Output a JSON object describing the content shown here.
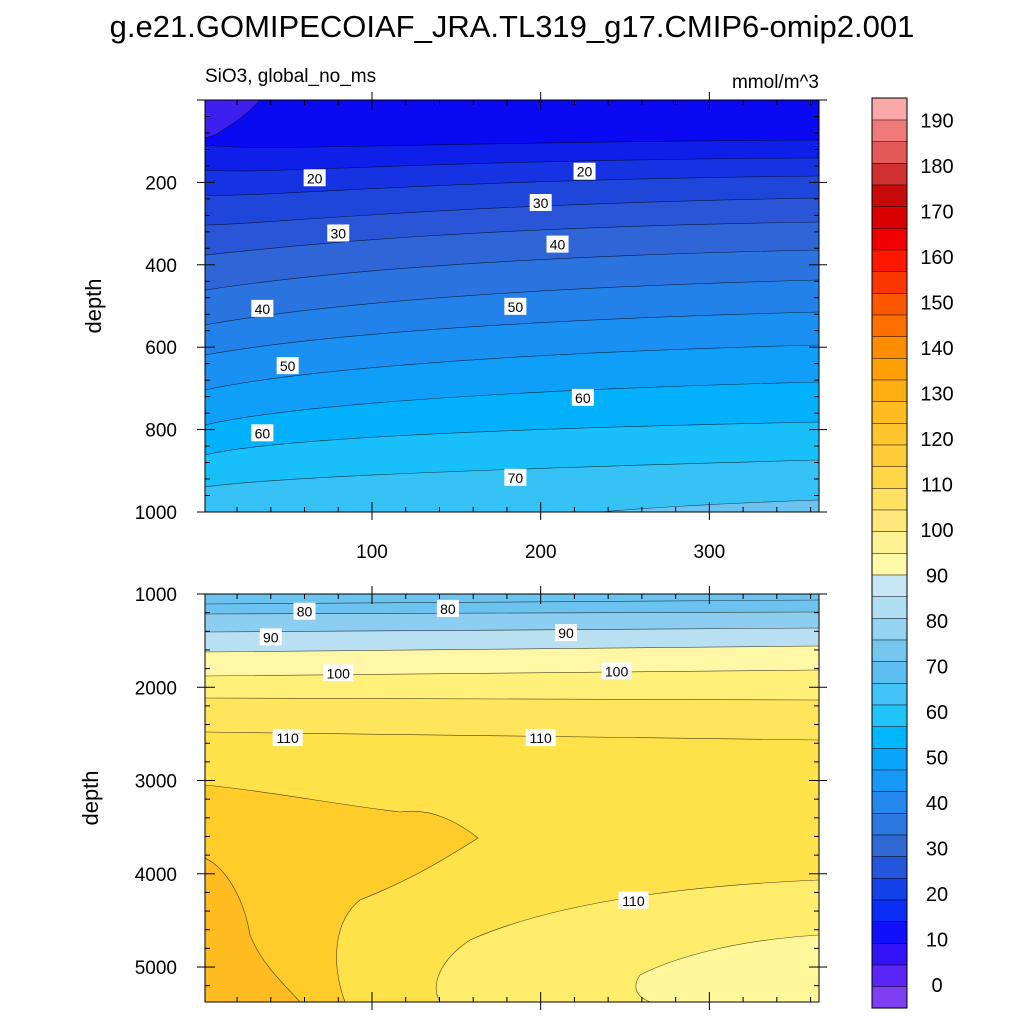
{
  "title": "g.e21.GOMIPECOIAF_JRA.TL319_g17.CMIP6-omip2.001",
  "chart_data": [
    {
      "type": "contour",
      "subtitle_left": "SiO3, global_no_ms",
      "subtitle_right": "mmol/m^3",
      "ylabel": "depth",
      "xlim": [
        1,
        365
      ],
      "ylim": [
        1000,
        0
      ],
      "xticks": [
        "100",
        "200",
        "300"
      ],
      "yticks": [
        "200",
        "400",
        "600",
        "800",
        "1000"
      ],
      "contour_labels": [
        {
          "text": "20",
          "x": 66,
          "y": 190
        },
        {
          "text": "20",
          "x": 226,
          "y": 174
        },
        {
          "text": "30",
          "x": 80,
          "y": 324
        },
        {
          "text": "30",
          "x": 200,
          "y": 250
        },
        {
          "text": "40",
          "x": 35,
          "y": 507
        },
        {
          "text": "40",
          "x": 210,
          "y": 351
        },
        {
          "text": "50",
          "x": 50,
          "y": 646
        },
        {
          "text": "50",
          "x": 185,
          "y": 502
        },
        {
          "text": "60",
          "x": 35,
          "y": 809
        },
        {
          "text": "60",
          "x": 225,
          "y": 723
        },
        {
          "text": "70",
          "x": 185,
          "y": 917
        }
      ]
    },
    {
      "type": "contour",
      "ylabel": "depth",
      "xlim": [
        1,
        365
      ],
      "ylim": [
        5375,
        1000
      ],
      "yticks": [
        "1000",
        "2000",
        "3000",
        "4000",
        "5000"
      ],
      "contour_labels": [
        {
          "text": "80",
          "x": 60,
          "y": 1190
        },
        {
          "text": "80",
          "x": 145,
          "y": 1160
        },
        {
          "text": "90",
          "x": 40,
          "y": 1465
        },
        {
          "text": "90",
          "x": 215,
          "y": 1420
        },
        {
          "text": "100",
          "x": 80,
          "y": 1850
        },
        {
          "text": "100",
          "x": 245,
          "y": 1830
        },
        {
          "text": "110",
          "x": 50,
          "y": 2545
        },
        {
          "text": "110",
          "x": 200,
          "y": 2545
        },
        {
          "text": "110",
          "x": 255,
          "y": 4290
        }
      ]
    }
  ],
  "colorbar": {
    "labels": [
      "0",
      "10",
      "20",
      "30",
      "40",
      "50",
      "60",
      "70",
      "80",
      "90",
      "100",
      "110",
      "120",
      "130",
      "140",
      "150",
      "160",
      "170",
      "180",
      "190"
    ],
    "colors": [
      "#7e3ff2",
      "#5b25f5",
      "#3312f8",
      "#1010fd",
      "#0a2ef5",
      "#1242e8",
      "#2555dc",
      "#3068d4",
      "#2a78e0",
      "#2288ee",
      "#1898f6",
      "#0aa5fb",
      "#00b7fd",
      "#20c4fa",
      "#42c4f6",
      "#5cbdf0",
      "#74c6ef",
      "#95d3f3",
      "#b0dff3",
      "#c7e6f4",
      "#fff9a8",
      "#fff292",
      "#ffe87a",
      "#ffe162",
      "#ffd648",
      "#ffcc38",
      "#fec52c",
      "#febc20",
      "#feae10",
      "#fe9f06",
      "#fe8c00",
      "#fd7000",
      "#fc5800",
      "#fc3600",
      "#fe1800",
      "#f10000",
      "#d80000",
      "#c80a0a",
      "#d03030",
      "#e45858",
      "#f07a7a",
      "#f8a8a8"
    ]
  }
}
